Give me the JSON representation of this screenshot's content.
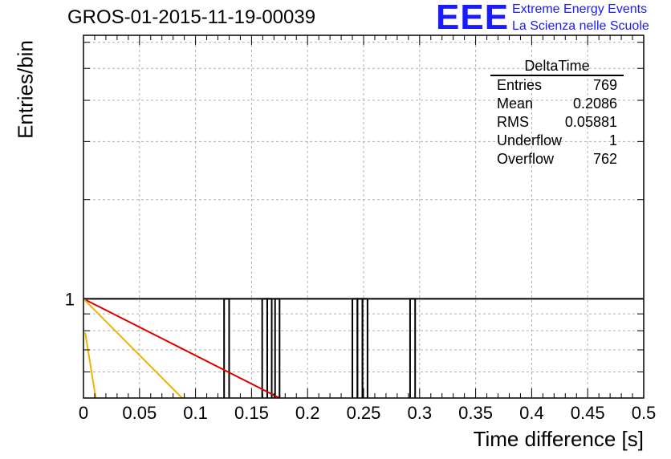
{
  "header": {
    "title": "GROS-01-2015-11-19-00039",
    "logo": "EEE",
    "logo_line1": "Extreme Energy Events",
    "logo_line2": "La Scienza nelle Scuole"
  },
  "stats_box": {
    "name": "DeltaTime",
    "rows": [
      {
        "label": "Entries",
        "value": "769"
      },
      {
        "label": "Mean",
        "value": "0.2086"
      },
      {
        "label": "RMS",
        "value": "0.05881"
      },
      {
        "label": "Underflow",
        "value": "1"
      },
      {
        "label": "Overflow",
        "value": "762"
      }
    ]
  },
  "chart_data": {
    "type": "bar",
    "title": "GROS-01-2015-11-19-00039",
    "xlabel": "Time difference [s]",
    "ylabel": "Entries/bin",
    "xlim": [
      0,
      0.5
    ],
    "ylim_log": [
      0.5,
      6.3
    ],
    "log_y": true,
    "grid": true,
    "x_ticks": [
      0,
      0.05,
      0.1,
      0.15,
      0.2,
      0.25,
      0.3,
      0.35,
      0.4,
      0.45,
      0.5
    ],
    "x_tick_labels": [
      "0",
      "0.05",
      "0.1",
      "0.15",
      "0.2",
      "0.25",
      "0.3",
      "0.35",
      "0.4",
      "0.45",
      "0.5"
    ],
    "y_tick_labels": [
      "1"
    ],
    "histogram_bins": [
      {
        "x0": 0.1255,
        "x1": 0.13,
        "count": 1
      },
      {
        "x0": 0.1595,
        "x1": 0.164,
        "count": 1
      },
      {
        "x0": 0.164,
        "x1": 0.168,
        "count": 1
      },
      {
        "x0": 0.171,
        "x1": 0.175,
        "count": 1
      },
      {
        "x0": 0.24,
        "x1": 0.2445,
        "count": 1
      },
      {
        "x0": 0.2445,
        "x1": 0.249,
        "count": 1
      },
      {
        "x0": 0.249,
        "x1": 0.2535,
        "count": 1
      },
      {
        "x0": 0.2915,
        "x1": 0.296,
        "count": 1
      }
    ],
    "fit_lines": [
      {
        "color": "#dd0000",
        "points": [
          [
            0.0,
            1.0
          ],
          [
            0.175,
            0.5
          ]
        ]
      },
      {
        "color": "#f0b400",
        "points": [
          [
            0.0,
            1.0
          ],
          [
            0.088,
            0.5
          ]
        ]
      },
      {
        "color": "#f0b400",
        "points": [
          [
            0.0015,
            0.79
          ],
          [
            0.011,
            0.5
          ]
        ]
      }
    ],
    "baseline_y": 1
  }
}
